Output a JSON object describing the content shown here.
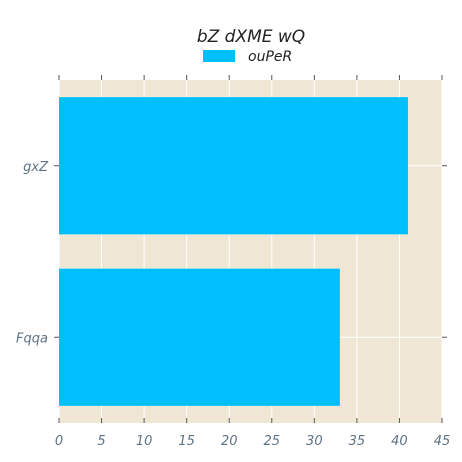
{
  "chart_data": {
    "type": "bar",
    "orientation": "horizontal",
    "title": "bZ dXME wQ",
    "categories": [
      "gxZ",
      "Fqqa"
    ],
    "series": [
      {
        "name": "ouPeR",
        "values": [
          41,
          33
        ],
        "color": "#00bfff"
      }
    ],
    "xlabel": "",
    "ylabel": "",
    "xlim": [
      0,
      45
    ],
    "xticks": [
      "0",
      "5",
      "10",
      "15",
      "20",
      "25",
      "30",
      "35",
      "40",
      "45"
    ],
    "grid": true,
    "legend": "top-center",
    "background_color": "#efe7d4",
    "grid_color": "#ffffff"
  }
}
